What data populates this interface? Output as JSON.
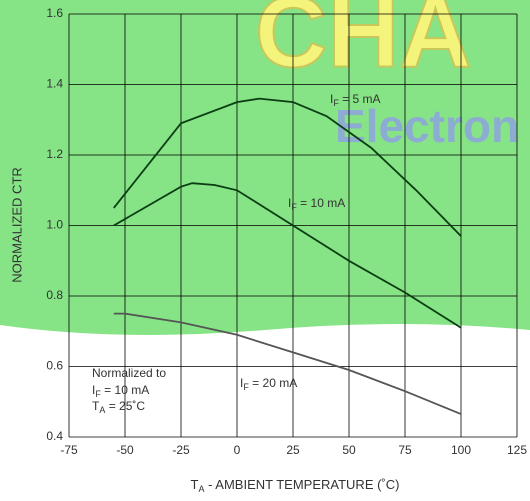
{
  "chart_data": {
    "type": "line",
    "watermark": [
      "CHA",
      "Electron"
    ],
    "xlabel": [
      "T",
      "A",
      " - AMBIENT TEMPERATURE (˚C)"
    ],
    "ylabel": "NORMALIZED CTR",
    "xlim": [
      -75,
      125
    ],
    "xticks": [
      -75,
      -50,
      -25,
      0,
      25,
      50,
      75,
      100,
      125
    ],
    "ylim": [
      0.4,
      1.6
    ],
    "yticks": [
      0.4,
      0.6,
      0.8,
      {
        "value": 1,
        "label": "1.0"
      },
      1.2,
      1.4,
      1.6
    ],
    "grid": true,
    "note": [
      "Normalized to",
      [
        "I",
        "F",
        " = 10 mA"
      ],
      [
        "T",
        "A",
        " = 25˚C"
      ]
    ],
    "series": [
      {
        "name": [
          "I",
          "F",
          " = 5 mA"
        ],
        "color": "#0b3d12",
        "x": [
          -55,
          -25,
          0,
          10,
          25,
          40,
          60,
          80,
          100
        ],
        "values": [
          1.05,
          1.29,
          1.35,
          1.36,
          1.35,
          1.31,
          1.22,
          1.1,
          0.97
        ]
      },
      {
        "name": [
          "I",
          "F",
          " = 10 mA"
        ],
        "color": "#0b3d12",
        "x": [
          -55,
          -25,
          -20,
          -10,
          0,
          25,
          50,
          75,
          100
        ],
        "values": [
          1.0,
          1.11,
          1.12,
          1.115,
          1.1,
          1.0,
          0.9,
          0.81,
          0.71
        ]
      },
      {
        "name": [
          "I",
          "F",
          " = 20 mA"
        ],
        "color": "#555555",
        "x": [
          -55,
          -50,
          -25,
          0,
          25,
          50,
          75,
          100
        ],
        "values": [
          0.75,
          0.75,
          0.725,
          0.69,
          0.64,
          0.59,
          0.53,
          0.465
        ]
      }
    ]
  }
}
